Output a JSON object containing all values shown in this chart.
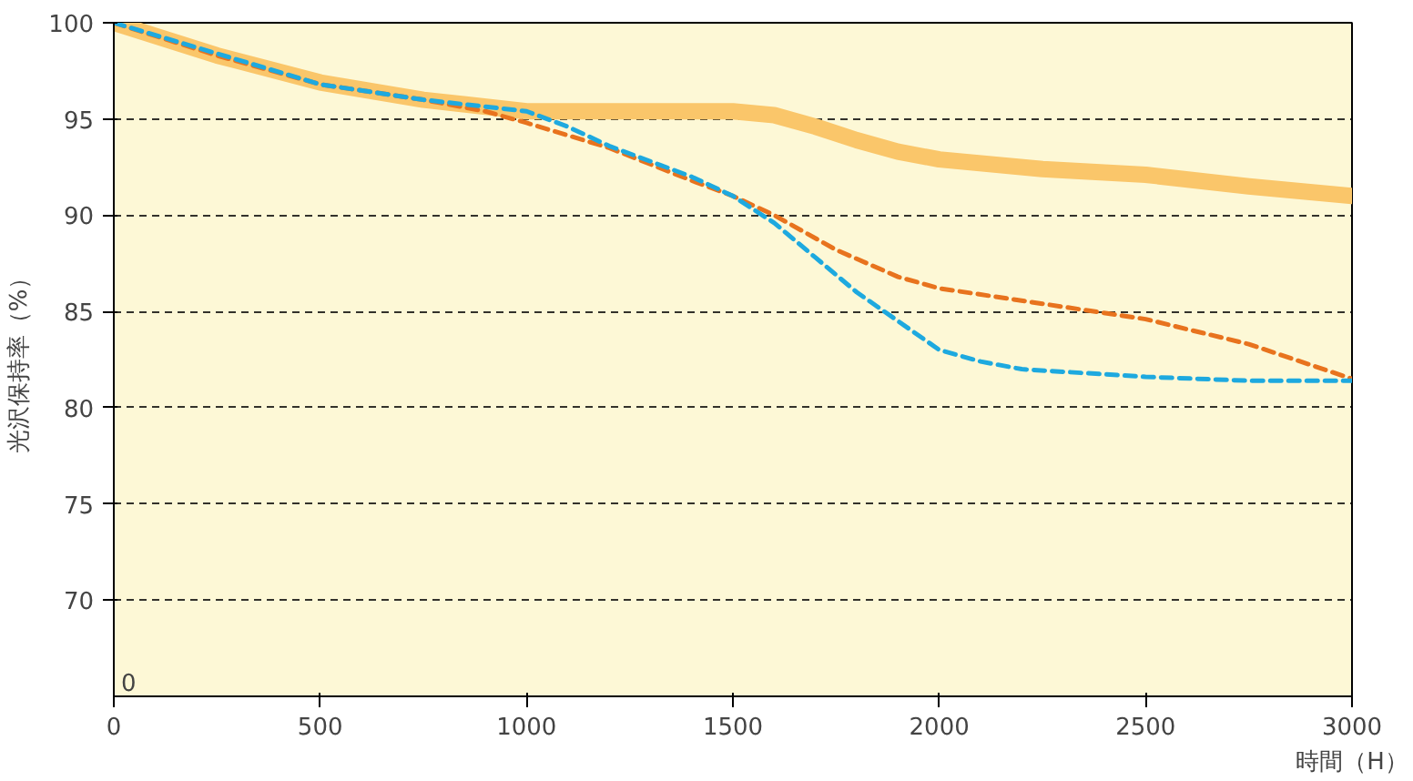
{
  "chart_data": {
    "type": "line",
    "xlabel": "時間（H）",
    "ylabel": "光沢保持率（%）",
    "xlim": [
      0,
      3000
    ],
    "xticks": [
      0,
      500,
      1000,
      1500,
      2000,
      2500,
      3000
    ],
    "ylim": [
      65,
      100
    ],
    "annotations": [
      "0"
    ],
    "yticks": [
      70,
      75,
      80,
      85,
      90,
      95,
      100
    ],
    "grid": "y",
    "marker": "none",
    "series": [
      {
        "color": "#fac66a",
        "line_style": "solid",
        "x": [
          0,
          250,
          500,
          750,
          1000,
          1250,
          1500,
          1600,
          1700,
          1800,
          1900,
          2000,
          2250,
          2500,
          2750,
          3000
        ],
        "values": [
          100,
          98.3,
          96.9,
          96,
          95.4,
          95.4,
          95.4,
          95.2,
          94.6,
          93.9,
          93.3,
          92.9,
          92.4,
          92.1,
          91.5,
          91
        ]
      },
      {
        "color": "#e8731e",
        "line_style": "dashed",
        "x": [
          0,
          250,
          500,
          750,
          900,
          1000,
          1200,
          1400,
          1500,
          1600,
          1750,
          1900,
          2000,
          2250,
          2500,
          2750,
          3000
        ],
        "values": [
          100,
          98.3,
          96.8,
          96,
          95.4,
          94.8,
          93.5,
          91.8,
          91,
          90,
          88.2,
          86.8,
          86.2,
          85.4,
          84.6,
          83.3,
          81.5
        ]
      },
      {
        "color": "#1ea9df",
        "line_style": "dashed",
        "x": [
          0,
          250,
          500,
          750,
          1000,
          1100,
          1200,
          1400,
          1500,
          1600,
          1700,
          1800,
          1900,
          2000,
          2100,
          2200,
          2500,
          2750,
          3000
        ],
        "values": [
          100,
          98.4,
          96.8,
          96,
          95.4,
          94.6,
          93.6,
          92,
          91,
          89.6,
          87.8,
          86,
          84.5,
          83,
          82.4,
          82,
          81.6,
          81.4,
          81.4
        ]
      }
    ]
  }
}
